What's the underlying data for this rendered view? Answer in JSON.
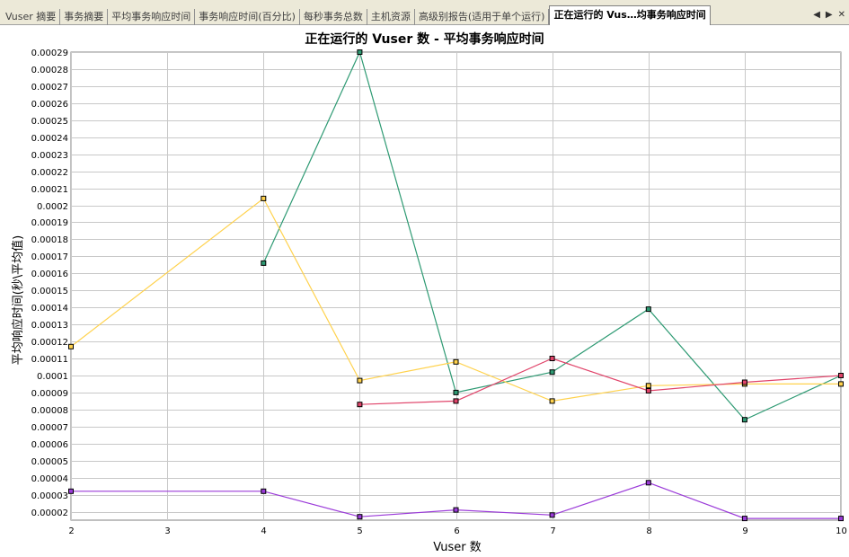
{
  "tabs": [
    {
      "label": "Vuser 摘要"
    },
    {
      "label": "事务摘要"
    },
    {
      "label": "平均事务响应时间"
    },
    {
      "label": "事务响应时间(百分比)"
    },
    {
      "label": "每秒事务总数"
    },
    {
      "label": "主机资源"
    },
    {
      "label": "高级别报告(适用于单个运行)"
    },
    {
      "label": "正在运行的 Vus…均事务响应时间",
      "active": true
    }
  ],
  "tab_nav": {
    "prev": "◀",
    "next": "▶",
    "close": "✕"
  },
  "chart_data": {
    "type": "line",
    "title": "正在运行的 Vuser 数 - 平均事务响应时间",
    "xlabel": "Vuser 数",
    "ylabel": "平均响应时间(秒\\平均值)",
    "xlim": [
      2,
      10
    ],
    "ylim": [
      1.5e-05,
      0.00029
    ],
    "x_ticks": [
      "2",
      "3",
      "4",
      "5",
      "6",
      "7",
      "8",
      "9",
      "10"
    ],
    "y_ticks": [
      "0.00029",
      "0.00028",
      "0.00027",
      "0.00026",
      "0.00025",
      "0.00024",
      "0.00023",
      "0.00022",
      "0.00021",
      "0.0002",
      "0.00019",
      "0.00018",
      "0.00017",
      "0.00016",
      "0.00015",
      "0.00014",
      "0.00013",
      "0.00012",
      "0.00011",
      "0.0001",
      "0.00009",
      "0.00008",
      "0.00007",
      "0.00006",
      "0.00005",
      "0.00004",
      "0.00003",
      "0.00002"
    ],
    "grid": true,
    "series": [
      {
        "color": "#2e9a73",
        "points": [
          [
            4,
            0.000166
          ],
          [
            5,
            0.00029
          ],
          [
            6,
            9e-05
          ],
          [
            7,
            0.000102
          ],
          [
            8,
            0.000139
          ],
          [
            9,
            7.4e-05
          ],
          [
            10,
            0.0001
          ]
        ]
      },
      {
        "color": "#ffd24d",
        "points": [
          [
            2,
            0.000117
          ],
          [
            4,
            0.000204
          ],
          [
            5,
            9.7e-05
          ],
          [
            6,
            0.000108
          ],
          [
            7,
            8.5e-05
          ],
          [
            8,
            9.4e-05
          ],
          [
            9,
            9.5e-05
          ],
          [
            10,
            9.5e-05
          ]
        ]
      },
      {
        "color": "#e0446a",
        "points": [
          [
            5,
            8.3e-05
          ],
          [
            6,
            8.5e-05
          ],
          [
            7,
            0.00011
          ],
          [
            8,
            9.1e-05
          ],
          [
            9,
            9.6e-05
          ],
          [
            10,
            0.0001
          ]
        ]
      },
      {
        "color": "#9b3bd9",
        "points": [
          [
            2,
            3.2e-05
          ],
          [
            4,
            3.2e-05
          ],
          [
            5,
            1.7e-05
          ],
          [
            6,
            2.1e-05
          ],
          [
            7,
            1.8e-05
          ],
          [
            8,
            3.7e-05
          ],
          [
            9,
            1.6e-05
          ],
          [
            10,
            1.6e-05
          ]
        ]
      }
    ]
  }
}
